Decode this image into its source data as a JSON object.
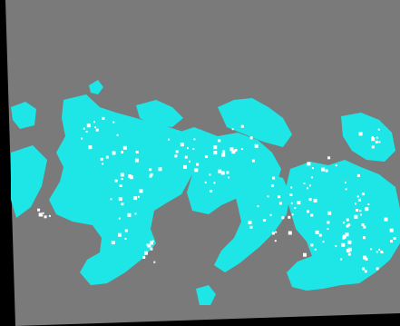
{
  "map": {
    "background_color": "#000000",
    "nodata_color": "#7a7a7a",
    "classes": [
      {
        "id": "cyan-class",
        "color": "#1fe6e6"
      },
      {
        "id": "white-class",
        "color": "#ffffff"
      }
    ]
  }
}
